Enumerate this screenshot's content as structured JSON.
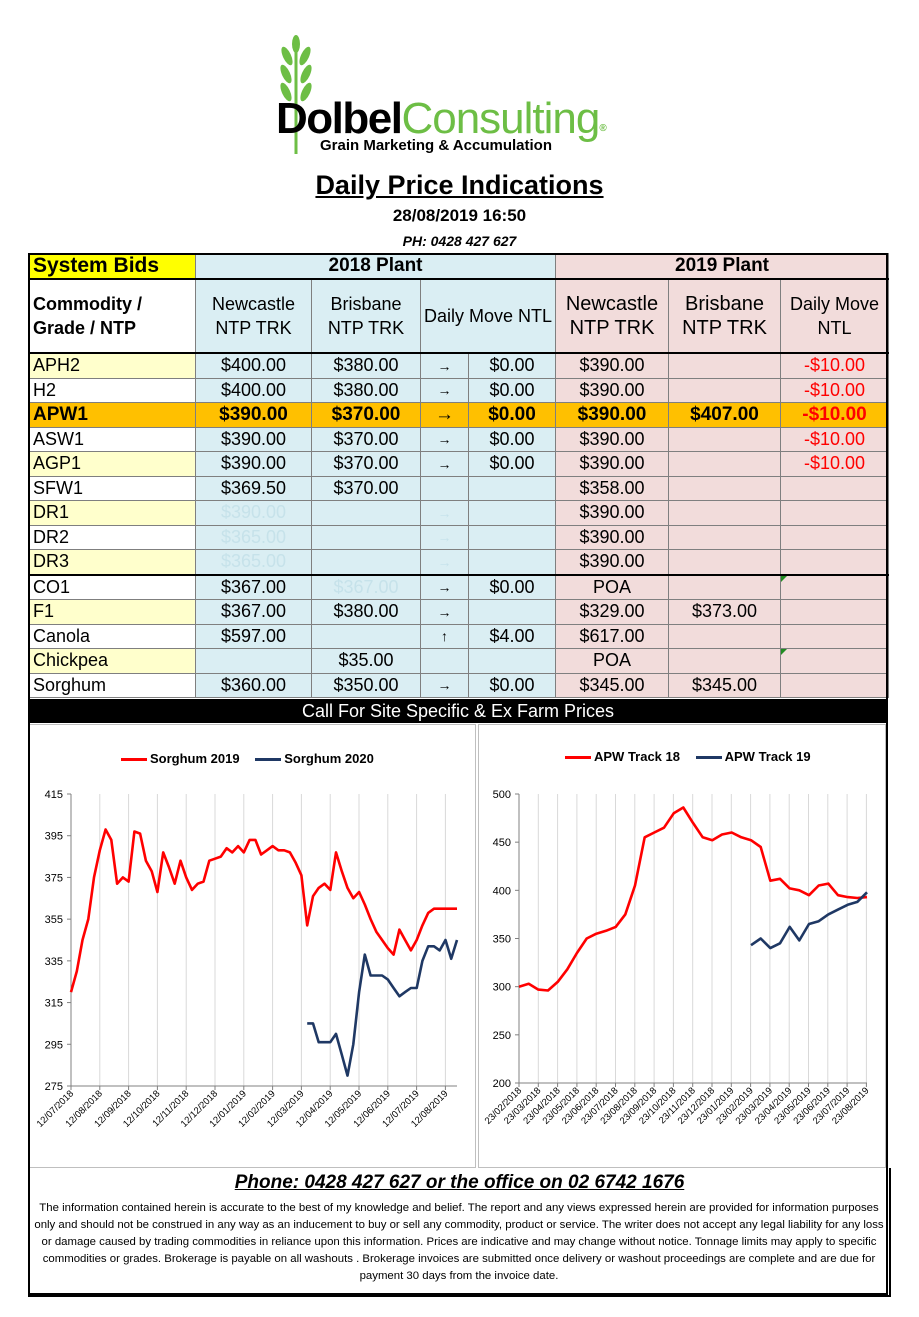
{
  "logo": {
    "brand_dark": "Dolbel",
    "brand_light": "Consulting",
    "reg": "®",
    "tagline": "Grain Marketing & Accumulation"
  },
  "header": {
    "title": "Daily Price Indications",
    "datetime": "28/08/2019 16:50",
    "phone": "PH: 0428 427 627"
  },
  "table": {
    "system_bids": "System Bids",
    "plant_2018": "2018 Plant",
    "plant_2019": "2019 Plant",
    "col_commodity": "Commodity / Grade / NTP",
    "col_newcastle_18": "Newcastle NTP TRK",
    "col_brisbane_18": "Brisbane NTP TRK",
    "col_daily_move_18": "Daily  Move NTL",
    "col_newcastle_19": "Newcastle NTP TRK",
    "col_brisbane_19": "Brisbane NTP TRK",
    "col_daily_move_19": "Daily Move NTL",
    "rows": [
      {
        "name": "APH2",
        "nc18": "$400.00",
        "br18": "$380.00",
        "arrow": "→",
        "mv18": "$0.00",
        "nc19": "$390.00",
        "br19": "",
        "mv19": "-$10.00"
      },
      {
        "name": "H2",
        "nc18": "$400.00",
        "br18": "$380.00",
        "arrow": "→",
        "mv18": "$0.00",
        "nc19": "$390.00",
        "br19": "",
        "mv19": "-$10.00"
      },
      {
        "name": "APW1",
        "nc18": "$390.00",
        "br18": "$370.00",
        "arrow": "→",
        "mv18": "$0.00",
        "nc19": "$390.00",
        "br19": "$407.00",
        "mv19": "-$10.00"
      },
      {
        "name": "ASW1",
        "nc18": "$390.00",
        "br18": "$370.00",
        "arrow": "→",
        "mv18": "$0.00",
        "nc19": "$390.00",
        "br19": "",
        "mv19": "-$10.00"
      },
      {
        "name": "AGP1",
        "nc18": "$390.00",
        "br18": "$370.00",
        "arrow": "→",
        "mv18": "$0.00",
        "nc19": "$390.00",
        "br19": "",
        "mv19": "-$10.00"
      },
      {
        "name": "SFW1",
        "nc18": "$369.50",
        "br18": "$370.00",
        "arrow": "",
        "mv18": "",
        "nc19": "$358.00",
        "br19": "",
        "mv19": ""
      },
      {
        "name": "DR1",
        "nc18": "$390.00",
        "br18": "",
        "arrow": "→",
        "mv18": "",
        "nc19": "$390.00",
        "br19": "",
        "mv19": ""
      },
      {
        "name": "DR2",
        "nc18": "$365.00",
        "br18": "",
        "arrow": "→",
        "mv18": "",
        "nc19": "$390.00",
        "br19": "",
        "mv19": ""
      },
      {
        "name": "DR3",
        "nc18": "$365.00",
        "br18": "",
        "arrow": "→",
        "mv18": "",
        "nc19": "$390.00",
        "br19": "",
        "mv19": ""
      },
      {
        "name": "CO1",
        "nc18": "$367.00",
        "br18": "$367.00",
        "arrow": "→",
        "mv18": "$0.00",
        "nc19": "POA",
        "br19": "",
        "mv19": ""
      },
      {
        "name": "F1",
        "nc18": "$367.00",
        "br18": "$380.00",
        "arrow": "→",
        "mv18": "",
        "nc19": "$329.00",
        "br19": "$373.00",
        "mv19": ""
      },
      {
        "name": "Canola",
        "nc18": "$597.00",
        "br18": "",
        "arrow": "↑",
        "mv18": "$4.00",
        "nc19": "$617.00",
        "br19": "",
        "mv19": ""
      },
      {
        "name": "Chickpea",
        "nc18": "",
        "br18": "$35.00",
        "arrow": "",
        "mv18": "",
        "nc19": "POA",
        "br19": "",
        "mv19": ""
      },
      {
        "name": "Sorghum",
        "nc18": "$360.00",
        "br18": "$350.00",
        "arrow": "→",
        "mv18": "$0.00",
        "nc19": "$345.00",
        "br19": "$345.00",
        "mv19": ""
      }
    ]
  },
  "banner": "Call For Site Specific & Ex Farm Prices",
  "chart_data": [
    {
      "type": "line",
      "title": "",
      "ylim": [
        275,
        415
      ],
      "yticks": [
        275,
        295,
        315,
        335,
        355,
        375,
        395,
        415
      ],
      "x_tick_labels": [
        "12/07/2018",
        "12/08/2018",
        "12/09/2018",
        "12/10/2018",
        "12/11/2018",
        "12/12/2018",
        "12/01/2019",
        "12/02/2019",
        "12/03/2019",
        "12/04/2019",
        "12/05/2019",
        "12/06/2019",
        "12/07/2019",
        "12/08/2019"
      ],
      "grid": "vertical",
      "legend": "top",
      "series": [
        {
          "name": "Sorghum 2019",
          "color": "#ff0000",
          "x": [
            0,
            0.2,
            0.4,
            0.6,
            0.8,
            1.0,
            1.2,
            1.4,
            1.6,
            1.8,
            2.0,
            2.2,
            2.4,
            2.6,
            2.8,
            3.0,
            3.2,
            3.4,
            3.6,
            3.8,
            4.0,
            4.2,
            4.4,
            4.6,
            4.8,
            5.0,
            5.2,
            5.4,
            5.6,
            5.8,
            6.0,
            6.2,
            6.4,
            6.6,
            6.8,
            7.0,
            7.2,
            7.4,
            7.6,
            7.8,
            8.0,
            8.2,
            8.4,
            8.6,
            8.8,
            9.0,
            9.2,
            9.4,
            9.6,
            9.8,
            10.0,
            10.2,
            10.4,
            10.6,
            10.8,
            11.0,
            11.2,
            11.4,
            11.6,
            11.8,
            12.0,
            12.2,
            12.4,
            12.6,
            12.8,
            13.0,
            13.2,
            13.4
          ],
          "y": [
            320,
            330,
            345,
            355,
            375,
            388,
            398,
            393,
            372,
            375,
            373,
            397,
            396,
            383,
            378,
            368,
            387,
            380,
            372,
            383,
            375,
            369,
            372,
            373,
            383,
            384,
            385,
            389,
            387,
            390,
            387,
            393,
            393,
            386,
            388,
            390,
            388,
            388,
            387,
            382,
            376,
            352,
            366,
            370,
            372,
            369,
            387,
            378,
            370,
            365,
            368,
            362,
            355,
            349,
            345,
            341,
            338,
            350,
            345,
            340,
            345,
            352,
            358,
            360,
            360,
            360,
            360,
            360
          ]
        },
        {
          "name": "Sorghum 2020",
          "color": "#1f3864",
          "x": [
            8.2,
            8.4,
            8.6,
            8.8,
            9.0,
            9.2,
            9.4,
            9.6,
            9.8,
            10.0,
            10.2,
            10.4,
            10.6,
            10.8,
            11.0,
            11.2,
            11.4,
            11.6,
            11.8,
            12.0,
            12.2,
            12.4,
            12.6,
            12.8,
            13.0,
            13.2,
            13.4
          ],
          "y": [
            305,
            305,
            296,
            296,
            296,
            300,
            290,
            280,
            295,
            320,
            338,
            328,
            328,
            328,
            326,
            322,
            318,
            320,
            322,
            322,
            335,
            342,
            342,
            340,
            345,
            336,
            345
          ]
        }
      ]
    },
    {
      "type": "line",
      "title": "",
      "ylim": [
        200,
        500
      ],
      "yticks": [
        200,
        250,
        300,
        350,
        400,
        450,
        500
      ],
      "x_tick_labels": [
        "23/02/2018",
        "23/03/2018",
        "23/04/2018",
        "23/05/2018",
        "23/06/2018",
        "23/07/2018",
        "23/08/2018",
        "23/09/2018",
        "23/10/2018",
        "23/11/2018",
        "23/12/2018",
        "23/01/2019",
        "23/02/2019",
        "23/03/2019",
        "23/04/2019",
        "23/05/2019",
        "23/06/2019",
        "23/07/2019",
        "23/08/2019"
      ],
      "grid": "vertical",
      "legend": "top",
      "series": [
        {
          "name": "APW Track 18",
          "color": "#ff0000",
          "x": [
            0,
            0.5,
            1,
            1.5,
            2,
            2.5,
            3,
            3.5,
            4,
            4.5,
            5,
            5.5,
            6,
            6.5,
            7,
            7.5,
            8,
            8.5,
            9,
            9.5,
            10,
            10.5,
            11,
            11.5,
            12,
            12.5,
            13,
            13.5,
            14,
            14.5,
            15,
            15.5,
            16,
            16.5,
            17,
            17.5,
            18
          ],
          "y": [
            300,
            303,
            297,
            296,
            305,
            318,
            335,
            350,
            355,
            358,
            362,
            375,
            405,
            455,
            460,
            465,
            480,
            486,
            470,
            455,
            452,
            458,
            460,
            455,
            452,
            445,
            410,
            412,
            402,
            400,
            395,
            405,
            407,
            395,
            393,
            392,
            393
          ]
        },
        {
          "name": "APW Track 19",
          "color": "#1f3864",
          "x": [
            12,
            12.5,
            13,
            13.5,
            14,
            14.5,
            15,
            15.5,
            16,
            16.5,
            17,
            17.5,
            18
          ],
          "y": [
            343,
            350,
            340,
            345,
            362,
            348,
            365,
            368,
            375,
            380,
            385,
            388,
            398
          ]
        }
      ]
    }
  ],
  "footer": {
    "phone": "Phone: 0428 427 627 or the office on 02 6742 1676",
    "disclaimer": "The information contained herein is accurate to the best of my knowledge and belief.  The report and any views expressed herein are provided for information purposes only and should not be construed in any way as an inducement to buy or sell any commodity, product or service. The writer does not accept any legal liability for any loss or damage caused by trading commodities in reliance upon this information. Prices are indicative and may change without notice. Tonnage limits may apply to specific commodities or grades.  Brokerage is payable on all washouts . Brokerage invoices are submitted once delivery or washout proceedings are complete and are due for payment 30 days from the invoice date."
  }
}
